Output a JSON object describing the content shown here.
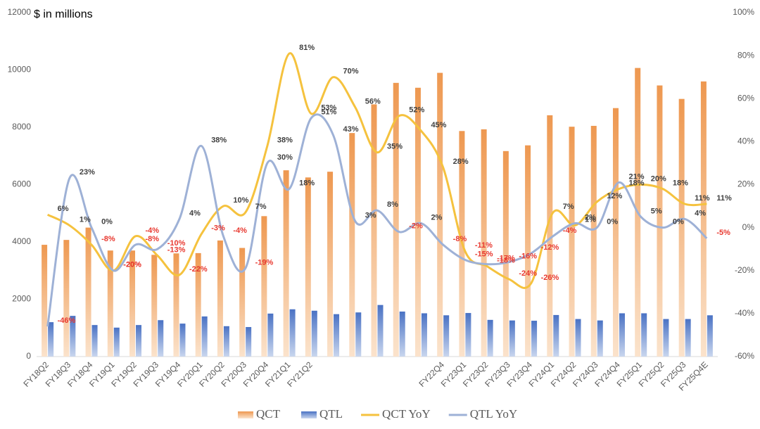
{
  "chart_data": {
    "type": "bar_line",
    "y_label": "$ in millions",
    "categories": [
      "FY18Q2",
      "FY18Q3",
      "FY18Q4",
      "FY19Q1",
      "FY19Q2",
      "FY19Q3",
      "FY19Q4",
      "FY20Q1",
      "FY20Q2",
      "FY20Q3",
      "FY20Q4",
      "FY21Q1",
      "FY21Q2",
      null,
      null,
      null,
      null,
      null,
      "FY22Q4",
      "FY23Q1",
      "FY23Q2",
      "FY23Q3",
      "FY23Q4",
      "FY24Q1",
      "FY24Q2",
      "FY24Q3",
      "FY24Q4",
      "FY25Q1",
      "FY25Q2",
      "FY25Q3",
      "FY25Q4E"
    ],
    "ylim": [
      0,
      12000
    ],
    "yticks": [
      0,
      2000,
      4000,
      6000,
      8000,
      10000,
      12000
    ],
    "y2lim": [
      -60,
      100
    ],
    "y2ticks": [
      {
        "value": -60,
        "label": "-60%"
      },
      {
        "value": -40,
        "label": "-40%"
      },
      {
        "value": -20,
        "label": "-20%"
      },
      {
        "value": 0,
        "label": "0%"
      },
      {
        "value": 20,
        "label": "20%"
      },
      {
        "value": 40,
        "label": "40%"
      },
      {
        "value": 60,
        "label": "60%"
      },
      {
        "value": 80,
        "label": "80%"
      },
      {
        "value": 100,
        "label": "100%"
      }
    ],
    "series": [
      {
        "name": "QCT",
        "kind": "bar",
        "color": "#f0a05e",
        "values": [
          3900,
          4070,
          4500,
          3700,
          3700,
          3550,
          3600,
          3610,
          4050,
          3790,
          4900,
          6500,
          6250,
          6450,
          7800,
          8800,
          9550,
          9380,
          9900,
          7870,
          7930,
          7170,
          7370,
          8420,
          8020,
          8050,
          8670,
          10070,
          9460,
          8990,
          9600
        ]
      },
      {
        "name": "QTL",
        "kind": "bar",
        "color": "#4a72c4",
        "values": [
          1200,
          1420,
          1100,
          1010,
          1100,
          1270,
          1150,
          1400,
          1060,
          1030,
          1500,
          1650,
          1600,
          1480,
          1540,
          1800,
          1570,
          1510,
          1440,
          1520,
          1280,
          1260,
          1250,
          1450,
          1310,
          1260,
          1510,
          1510,
          1310,
          1310,
          1440
        ]
      },
      {
        "name": "QCT YoY",
        "kind": "line",
        "axis": "y2",
        "color": "#f5c23e",
        "values": [
          6,
          1,
          -8,
          -20,
          -4,
          -13,
          -22,
          -3,
          10,
          7,
          38,
          81,
          53,
          70,
          56,
          35,
          52,
          45,
          28,
          -11,
          -18,
          -24,
          -26,
          7,
          1,
          12,
          18,
          20,
          18,
          11,
          11
        ],
        "value_labels": [
          "6%",
          "1%",
          "-8%",
          "-20%",
          "-4%",
          "-13%",
          "-22%",
          "-3%",
          "10%",
          "7%",
          "38%",
          "81%",
          "53%",
          "70%",
          "56%",
          "35%",
          "52%",
          "45%",
          "28%",
          "-11%",
          "-18%",
          "-24%",
          "-26%",
          "7%",
          "1%",
          "12%",
          "18%",
          "20%",
          "18%",
          "11%",
          "11%"
        ]
      },
      {
        "name": "QTL YoY",
        "kind": "line",
        "axis": "y2",
        "color": "#9eb1d6",
        "values": [
          -46,
          23,
          0,
          -20,
          -8,
          -10,
          4,
          38,
          -4,
          -19,
          30,
          18,
          51,
          43,
          3,
          8,
          -2,
          2,
          -8,
          -15,
          -17,
          -16,
          -12,
          -4,
          2,
          0,
          21,
          5,
          0,
          4,
          -5
        ],
        "value_labels": [
          "-46%",
          "23%",
          "0%",
          "-20%",
          "-8%",
          "-10%",
          "4%",
          "38%",
          "-4%",
          "-19%",
          "30%",
          "18%",
          "51%",
          "43%",
          "3%",
          "8%",
          "-2%",
          "2%",
          "-8%",
          "-15%",
          "-17%",
          "-16%",
          "-12%",
          "-4%",
          "2%",
          "0%",
          "21%",
          "5%",
          "0%",
          "4%",
          "-5%"
        ]
      }
    ]
  }
}
